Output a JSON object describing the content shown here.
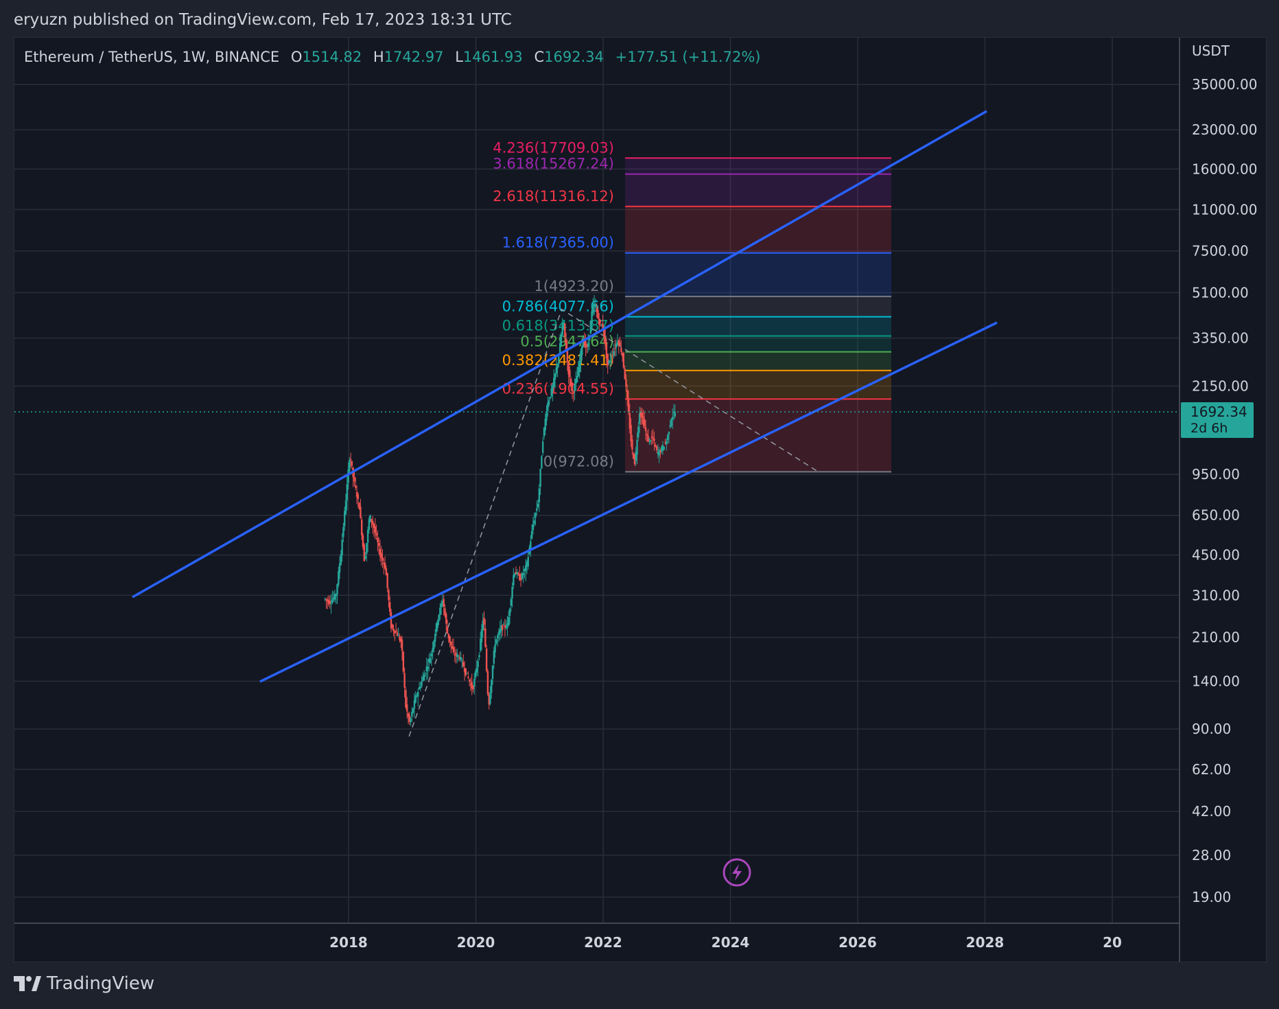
{
  "header": {
    "publish_line": "eryuzn published on TradingView.com, Feb 17, 2023 18:31 UTC"
  },
  "legend": {
    "symbol": "Ethereum / TetherUS, 1W, BINANCE",
    "open_label": "O",
    "open": "1514.82",
    "high_label": "H",
    "high": "1742.97",
    "low_label": "L",
    "low": "1461.93",
    "close_label": "C",
    "close": "1692.34",
    "change": "+177.51 (+11.72%)"
  },
  "price_axis": {
    "currency": "USDT",
    "ticks": [
      "35000.00",
      "23000.00",
      "16000.00",
      "11000.00",
      "7500.00",
      "5100.00",
      "3350.00",
      "2150.00",
      "950.00",
      "650.00",
      "450.00",
      "310.00",
      "210.00",
      "140.00",
      "90.00",
      "62.00",
      "42.00",
      "28.00",
      "19.00"
    ]
  },
  "time_axis": {
    "ticks": [
      "2018",
      "2020",
      "2022",
      "2024",
      "2026",
      "2028",
      "20"
    ]
  },
  "price_tag": {
    "price": "1692.34",
    "countdown": "2d 6h",
    "color": "#26a69a"
  },
  "fib_levels": [
    {
      "label": "4.236(17709.03)",
      "color": "#e91e63"
    },
    {
      "label": "3.618(15267.24)",
      "color": "#9c27b0"
    },
    {
      "label": "2.618(11316.12)",
      "color": "#f23645"
    },
    {
      "label": "1.618(7365.00)",
      "color": "#2962ff"
    },
    {
      "label": "1(4923.20)",
      "color": "#787b86"
    },
    {
      "label": "0.786(4077.66)",
      "color": "#00bcd4"
    },
    {
      "label": "0.618(3413.87)",
      "color": "#089981"
    },
    {
      "label": "0.5(2947.64)",
      "color": "#4caf50"
    },
    {
      "label": "0.382(2481.41)",
      "color": "#ff9800"
    },
    {
      "label": "0.236(1904.55)",
      "color": "#f23645"
    },
    {
      "label": "0(972.08)",
      "color": "#787b86"
    }
  ],
  "colors": {
    "up": "#26a69a",
    "down": "#ef5350",
    "channel": "#2962ff",
    "background": "#131722"
  },
  "icons": {
    "event": "lightning-icon",
    "brand": "tradingview-logo-icon"
  },
  "branding": {
    "name": "TradingView"
  }
}
